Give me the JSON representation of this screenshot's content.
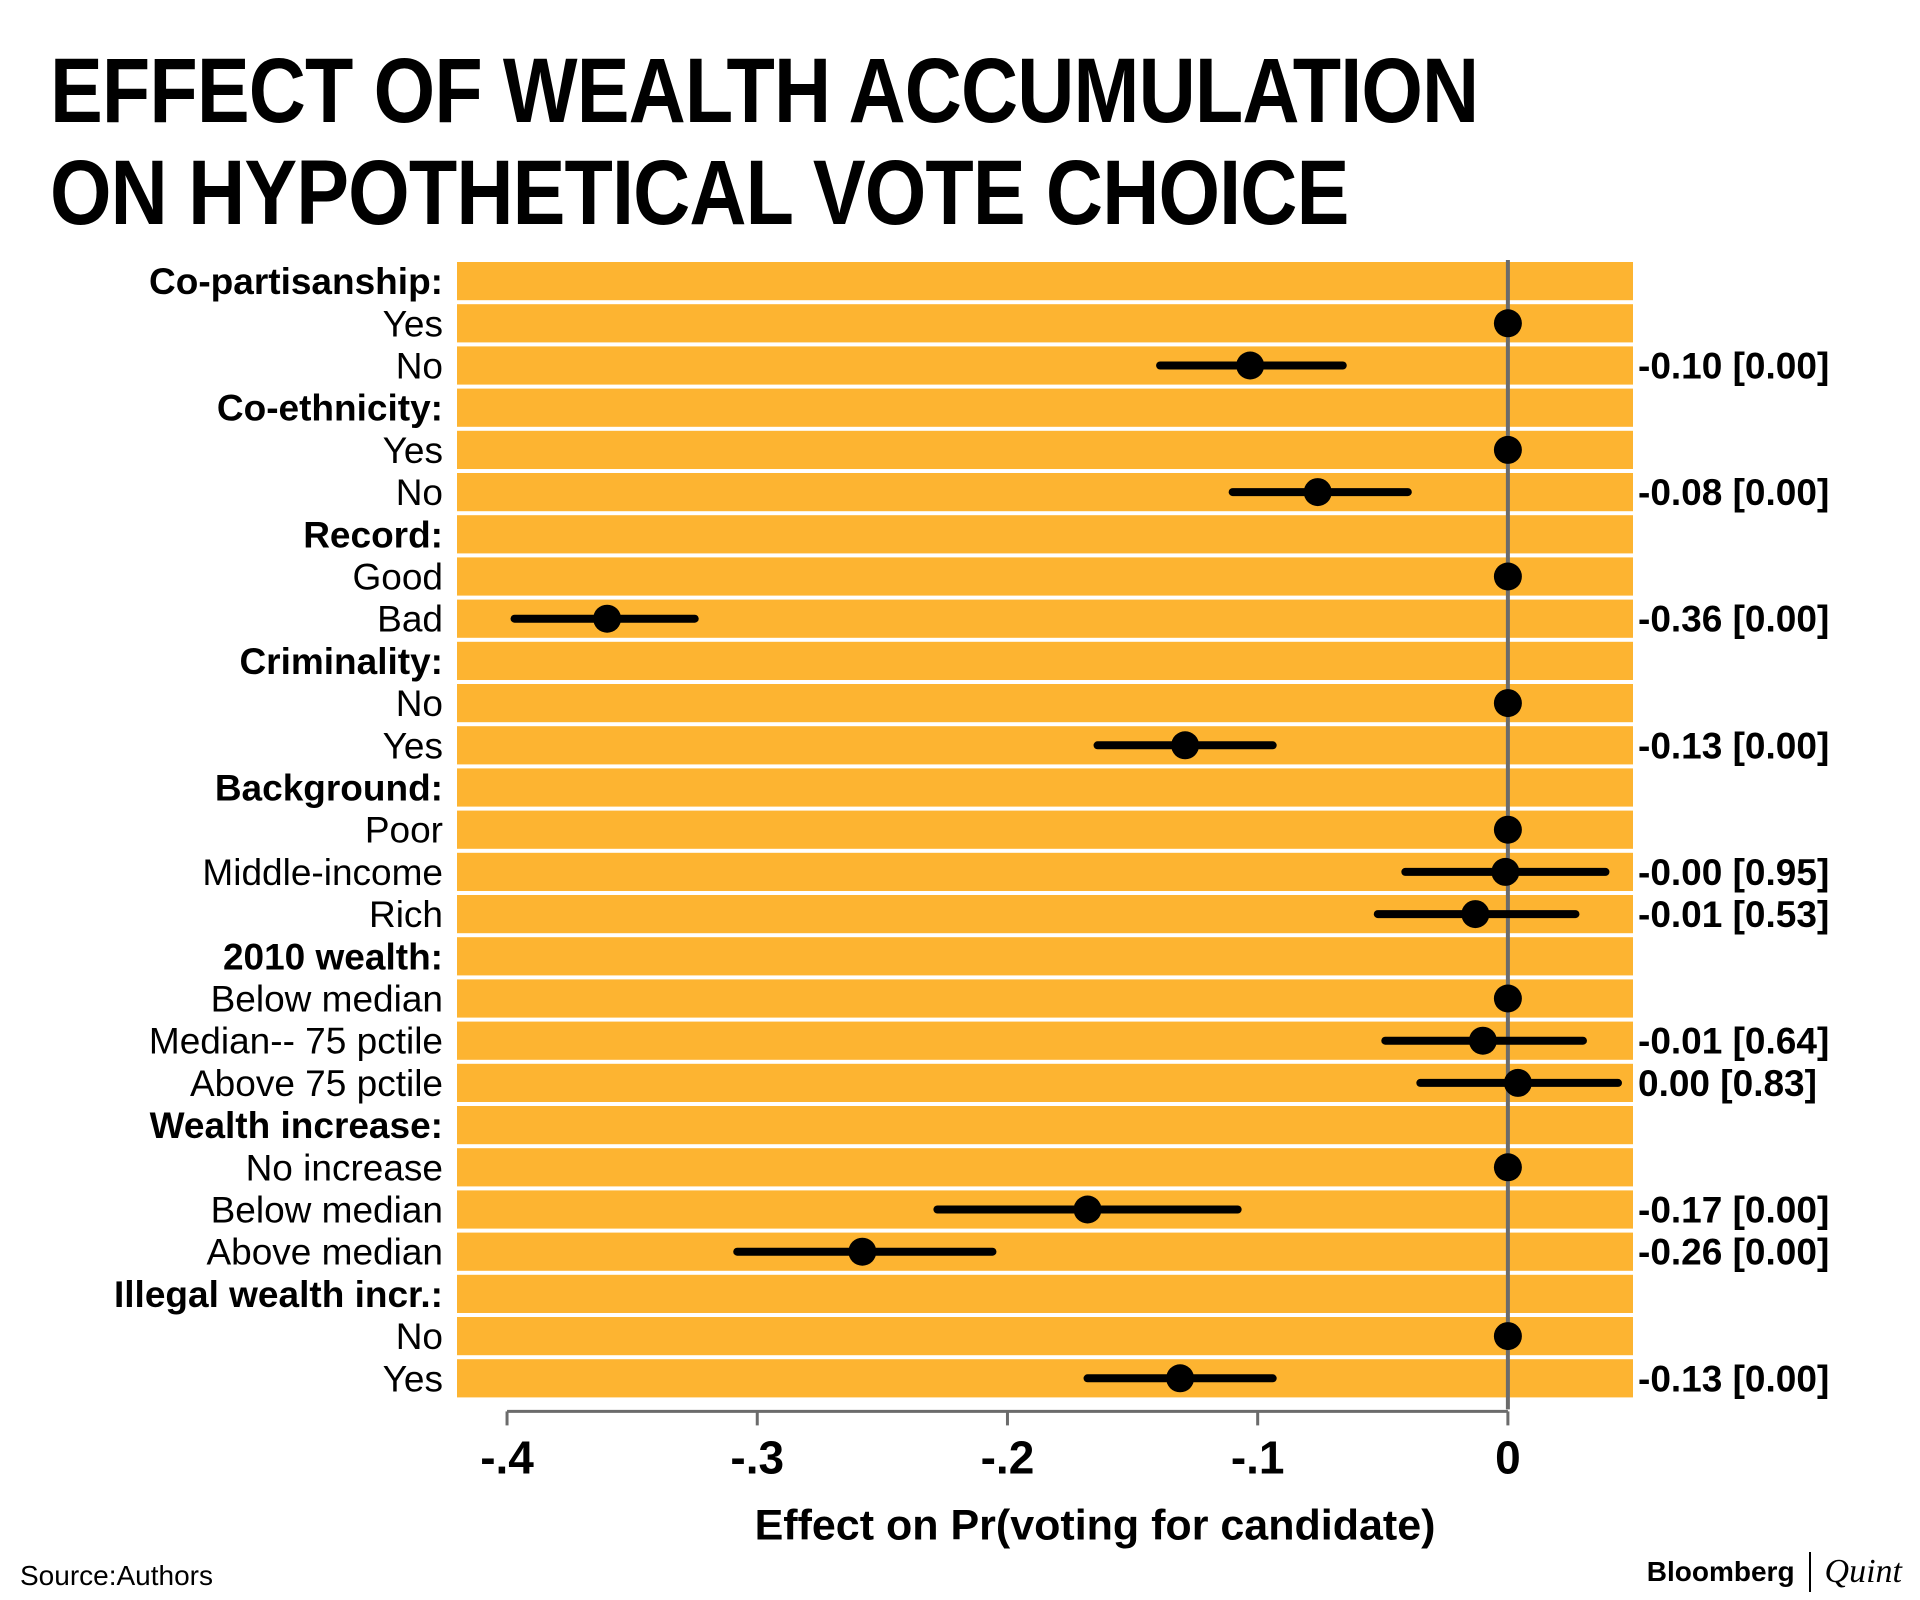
{
  "title_lines": [
    "EFFECT OF WEALTH ACCUMULATION",
    "ON HYPOTHETICAL VOTE CHOICE"
  ],
  "source": "Source:Authors",
  "brand": {
    "left": "Bloomberg",
    "right": "Quint"
  },
  "colors": {
    "band": "#fdb431",
    "separator": "#ffffff",
    "marker": "#000000",
    "zero_line": "#6b6b6b"
  },
  "chart_data": {
    "type": "scatter",
    "title": "EFFECT OF WEALTH ACCUMULATION ON HYPOTHETICAL VOTE CHOICE",
    "xlabel": "Effect on Pr(voting for candidate)",
    "xlim": [
      -0.42,
      0.05
    ],
    "xticks": [
      -0.4,
      -0.3,
      -0.2,
      -0.1,
      0
    ],
    "xtick_labels": [
      "-.4",
      "-.3",
      "-.2",
      "-.1",
      "0"
    ],
    "rows": [
      {
        "label": "Co-partisanship:",
        "header": true
      },
      {
        "label": "Yes",
        "estimate": 0
      },
      {
        "label": "No",
        "estimate": -0.103,
        "ci": [
          -0.139,
          -0.066
        ],
        "value_label": "-0.10 [0.00]"
      },
      {
        "label": "Co-ethnicity:",
        "header": true
      },
      {
        "label": "Yes",
        "estimate": 0
      },
      {
        "label": "No",
        "estimate": -0.076,
        "ci": [
          -0.11,
          -0.04
        ],
        "value_label": "-0.08 [0.00]"
      },
      {
        "label": "Record:",
        "header": true
      },
      {
        "label": "Good",
        "estimate": 0
      },
      {
        "label": "Bad",
        "estimate": -0.36,
        "ci": [
          -0.397,
          -0.325
        ],
        "value_label": "-0.36 [0.00]"
      },
      {
        "label": "Criminality:",
        "header": true
      },
      {
        "label": "No",
        "estimate": 0
      },
      {
        "label": "Yes",
        "estimate": -0.129,
        "ci": [
          -0.164,
          -0.094
        ],
        "value_label": "-0.13 [0.00]"
      },
      {
        "label": "Background:",
        "header": true
      },
      {
        "label": "Poor",
        "estimate": 0
      },
      {
        "label": "Middle-income",
        "estimate": -0.001,
        "ci": [
          -0.041,
          0.039
        ],
        "value_label": "-0.00 [0.95]"
      },
      {
        "label": "Rich",
        "estimate": -0.013,
        "ci": [
          -0.052,
          0.027
        ],
        "value_label": "-0.01 [0.53]"
      },
      {
        "label": "2010 wealth:",
        "header": true
      },
      {
        "label": "Below median",
        "estimate": 0
      },
      {
        "label": "Median-- 75 pctile",
        "estimate": -0.01,
        "ci": [
          -0.049,
          0.03
        ],
        "value_label": "-0.01 [0.64]"
      },
      {
        "label": "Above 75 pctile",
        "estimate": 0.004,
        "ci": [
          -0.035,
          0.044
        ],
        "value_label": "0.00 [0.83]"
      },
      {
        "label": "Wealth increase:",
        "header": true
      },
      {
        "label": "No increase",
        "estimate": 0
      },
      {
        "label": "Below median",
        "estimate": -0.168,
        "ci": [
          -0.228,
          -0.108
        ],
        "value_label": "-0.17 [0.00]"
      },
      {
        "label": "Above median",
        "estimate": -0.258,
        "ci": [
          -0.308,
          -0.206
        ],
        "value_label": "-0.26 [0.00]"
      },
      {
        "label": "Illegal wealth incr.:",
        "header": true
      },
      {
        "label": "No",
        "estimate": 0
      },
      {
        "label": "Yes",
        "estimate": -0.131,
        "ci": [
          -0.168,
          -0.094
        ],
        "value_label": "-0.13 [0.00]"
      }
    ]
  }
}
